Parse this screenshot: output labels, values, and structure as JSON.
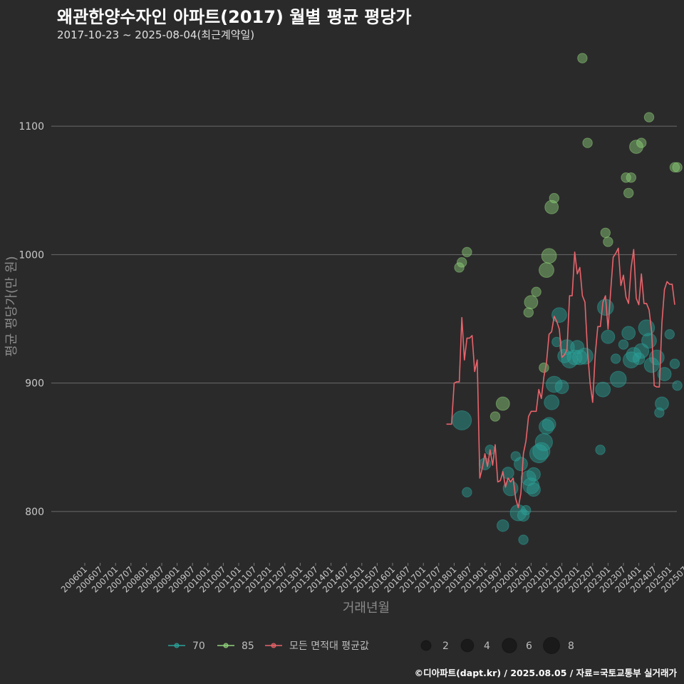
{
  "title": "왜관한양수자인 아파트(2017) 월별 평균 평당가",
  "subtitle": "2017-10-23 ~ 2025-08-04(최근계약일)",
  "caption": "©디아파트(dapt.kr) / 2025.08.05 / 자료=국토교통부 실거래가",
  "colors": {
    "s70": "#2aa198",
    "s85": "#8fd17a",
    "avg": "#e8646b",
    "grid": "#6a6a6a",
    "bg": "#2b2a2b"
  },
  "chart_data": {
    "type": "scatter",
    "title": "왜관한양수자인 아파트(2017) 월별 평균 평당가",
    "xlabel": "거래년월",
    "ylabel": "평균 평당가(만 원)",
    "ylim": [
      760,
      1165
    ],
    "yticks": [
      800,
      900,
      1000,
      1100
    ],
    "xtick_labels": [
      "200601",
      "200607",
      "200701",
      "200707",
      "200801",
      "200807",
      "200901",
      "200907",
      "201001",
      "201007",
      "201101",
      "201107",
      "201201",
      "201207",
      "201301",
      "201307",
      "201401",
      "201407",
      "201501",
      "201507",
      "201601",
      "201607",
      "201701",
      "201707",
      "201801",
      "201807",
      "201901",
      "201907",
      "202001",
      "202007",
      "202101",
      "202107",
      "202201",
      "202207",
      "202301",
      "202307",
      "202401",
      "202407",
      "202501",
      "202507"
    ],
    "legend": {
      "series": [
        {
          "name": "70",
          "color_key": "s70"
        },
        {
          "name": "85",
          "color_key": "s85"
        },
        {
          "name": "모든 면적대 평균값",
          "color_key": "avg"
        }
      ],
      "size_labels": [
        "2",
        "4",
        "6",
        "8"
      ]
    },
    "series": [
      {
        "name": "70",
        "points": [
          {
            "x": "2018-04",
            "y": 871,
            "n": 8
          },
          {
            "x": "2018-06",
            "y": 815,
            "n": 1
          },
          {
            "x": "2019-01",
            "y": 837,
            "n": 2
          },
          {
            "x": "2019-03",
            "y": 848,
            "n": 1
          },
          {
            "x": "2019-08",
            "y": 789,
            "n": 2
          },
          {
            "x": "2019-10",
            "y": 830,
            "n": 2
          },
          {
            "x": "2019-11",
            "y": 818,
            "n": 4
          },
          {
            "x": "2020-01",
            "y": 843,
            "n": 1
          },
          {
            "x": "2020-02",
            "y": 799,
            "n": 5
          },
          {
            "x": "2020-03",
            "y": 837,
            "n": 3
          },
          {
            "x": "2020-04",
            "y": 778,
            "n": 1
          },
          {
            "x": "2020-04",
            "y": 797,
            "n": 2
          },
          {
            "x": "2020-05",
            "y": 801,
            "n": 1
          },
          {
            "x": "2020-06",
            "y": 826,
            "n": 4
          },
          {
            "x": "2020-07",
            "y": 820,
            "n": 5
          },
          {
            "x": "2020-08",
            "y": 829,
            "n": 3
          },
          {
            "x": "2020-08",
            "y": 817,
            "n": 3
          },
          {
            "x": "2020-10",
            "y": 845,
            "n": 7
          },
          {
            "x": "2020-11",
            "y": 847,
            "n": 6
          },
          {
            "x": "2020-12",
            "y": 854,
            "n": 6
          },
          {
            "x": "2021-01",
            "y": 866,
            "n": 4
          },
          {
            "x": "2021-02",
            "y": 868,
            "n": 3
          },
          {
            "x": "2021-03",
            "y": 885,
            "n": 4
          },
          {
            "x": "2021-04",
            "y": 899,
            "n": 5
          },
          {
            "x": "2021-05",
            "y": 932,
            "n": 1
          },
          {
            "x": "2021-06",
            "y": 953,
            "n": 4
          },
          {
            "x": "2021-07",
            "y": 897,
            "n": 3
          },
          {
            "x": "2021-08",
            "y": 921,
            "n": 3
          },
          {
            "x": "2021-09",
            "y": 928,
            "n": 4
          },
          {
            "x": "2021-10",
            "y": 918,
            "n": 5
          },
          {
            "x": "2021-12",
            "y": 920,
            "n": 4
          },
          {
            "x": "2022-01",
            "y": 928,
            "n": 3
          },
          {
            "x": "2022-02",
            "y": 920,
            "n": 4
          },
          {
            "x": "2022-04",
            "y": 921,
            "n": 5
          },
          {
            "x": "2022-10",
            "y": 848,
            "n": 1
          },
          {
            "x": "2022-11",
            "y": 895,
            "n": 4
          },
          {
            "x": "2022-12",
            "y": 959,
            "n": 5
          },
          {
            "x": "2023-01",
            "y": 936,
            "n": 3
          },
          {
            "x": "2023-04",
            "y": 919,
            "n": 1
          },
          {
            "x": "2023-05",
            "y": 903,
            "n": 5
          },
          {
            "x": "2023-07",
            "y": 930,
            "n": 1
          },
          {
            "x": "2023-09",
            "y": 939,
            "n": 3
          },
          {
            "x": "2023-10",
            "y": 918,
            "n": 5
          },
          {
            "x": "2023-11",
            "y": 922,
            "n": 4
          },
          {
            "x": "2024-01",
            "y": 919,
            "n": 2
          },
          {
            "x": "2024-02",
            "y": 925,
            "n": 4
          },
          {
            "x": "2024-04",
            "y": 943,
            "n": 5
          },
          {
            "x": "2024-05",
            "y": 933,
            "n": 4
          },
          {
            "x": "2024-06",
            "y": 914,
            "n": 4
          },
          {
            "x": "2024-08",
            "y": 920,
            "n": 4
          },
          {
            "x": "2024-09",
            "y": 877,
            "n": 1
          },
          {
            "x": "2024-10",
            "y": 884,
            "n": 3
          },
          {
            "x": "2024-11",
            "y": 907,
            "n": 3
          },
          {
            "x": "2025-01",
            "y": 938,
            "n": 1
          },
          {
            "x": "2025-03",
            "y": 915,
            "n": 1
          },
          {
            "x": "2025-04",
            "y": 898,
            "n": 1
          }
        ]
      },
      {
        "name": "85",
        "points": [
          {
            "x": "2018-03",
            "y": 990,
            "n": 1
          },
          {
            "x": "2018-04",
            "y": 994,
            "n": 1
          },
          {
            "x": "2018-06",
            "y": 1002,
            "n": 1
          },
          {
            "x": "2019-05",
            "y": 874,
            "n": 1
          },
          {
            "x": "2019-08",
            "y": 884,
            "n": 3
          },
          {
            "x": "2020-06",
            "y": 955,
            "n": 1
          },
          {
            "x": "2020-07",
            "y": 963,
            "n": 3
          },
          {
            "x": "2020-09",
            "y": 971,
            "n": 1
          },
          {
            "x": "2020-12",
            "y": 912,
            "n": 1
          },
          {
            "x": "2021-01",
            "y": 988,
            "n": 4
          },
          {
            "x": "2021-02",
            "y": 999,
            "n": 4
          },
          {
            "x": "2021-03",
            "y": 1037,
            "n": 3
          },
          {
            "x": "2021-04",
            "y": 1044,
            "n": 1
          },
          {
            "x": "2022-03",
            "y": 1153,
            "n": 1
          },
          {
            "x": "2022-05",
            "y": 1087,
            "n": 1
          },
          {
            "x": "2022-12",
            "y": 1017,
            "n": 1
          },
          {
            "x": "2023-01",
            "y": 1010,
            "n": 1
          },
          {
            "x": "2023-08",
            "y": 1060,
            "n": 1
          },
          {
            "x": "2023-09",
            "y": 1048,
            "n": 1
          },
          {
            "x": "2023-10",
            "y": 1060,
            "n": 1
          },
          {
            "x": "2023-12",
            "y": 1084,
            "n": 3
          },
          {
            "x": "2024-02",
            "y": 1087,
            "n": 1
          },
          {
            "x": "2024-05",
            "y": 1107,
            "n": 1
          },
          {
            "x": "2025-03",
            "y": 1068,
            "n": 1
          },
          {
            "x": "2025-04",
            "y": 1068,
            "n": 1
          }
        ]
      }
    ],
    "average_line": {
      "name": "모든 면적대 평균값",
      "points": [
        {
          "x": "2017-10",
          "y": 868
        },
        {
          "x": "2017-11",
          "y": 868
        },
        {
          "x": "2017-12",
          "y": 868
        },
        {
          "x": "2018-01",
          "y": 900
        },
        {
          "x": "2018-02",
          "y": 901
        },
        {
          "x": "2018-03",
          "y": 901
        },
        {
          "x": "2018-04",
          "y": 951
        },
        {
          "x": "2018-05",
          "y": 918
        },
        {
          "x": "2018-06",
          "y": 935
        },
        {
          "x": "2018-07",
          "y": 935
        },
        {
          "x": "2018-08",
          "y": 937
        },
        {
          "x": "2018-09",
          "y": 909
        },
        {
          "x": "2018-10",
          "y": 918
        },
        {
          "x": "2018-11",
          "y": 826
        },
        {
          "x": "2018-12",
          "y": 834
        },
        {
          "x": "2019-01",
          "y": 845
        },
        {
          "x": "2019-02",
          "y": 835
        },
        {
          "x": "2019-03",
          "y": 848
        },
        {
          "x": "2019-04",
          "y": 836
        },
        {
          "x": "2019-05",
          "y": 852
        },
        {
          "x": "2019-06",
          "y": 823
        },
        {
          "x": "2019-07",
          "y": 824
        },
        {
          "x": "2019-08",
          "y": 831
        },
        {
          "x": "2019-09",
          "y": 819
        },
        {
          "x": "2019-10",
          "y": 826
        },
        {
          "x": "2019-11",
          "y": 823
        },
        {
          "x": "2019-12",
          "y": 826
        },
        {
          "x": "2020-01",
          "y": 810
        },
        {
          "x": "2020-02",
          "y": 803
        },
        {
          "x": "2020-03",
          "y": 814
        },
        {
          "x": "2020-04",
          "y": 845
        },
        {
          "x": "2020-05",
          "y": 855
        },
        {
          "x": "2020-06",
          "y": 874
        },
        {
          "x": "2020-07",
          "y": 878
        },
        {
          "x": "2020-08",
          "y": 878
        },
        {
          "x": "2020-09",
          "y": 878
        },
        {
          "x": "2020-10",
          "y": 895
        },
        {
          "x": "2020-11",
          "y": 888
        },
        {
          "x": "2020-12",
          "y": 905
        },
        {
          "x": "2021-01",
          "y": 916
        },
        {
          "x": "2021-02",
          "y": 938
        },
        {
          "x": "2021-03",
          "y": 940
        },
        {
          "x": "2021-04",
          "y": 952
        },
        {
          "x": "2021-05",
          "y": 948
        },
        {
          "x": "2021-06",
          "y": 942
        },
        {
          "x": "2021-07",
          "y": 920
        },
        {
          "x": "2021-08",
          "y": 922
        },
        {
          "x": "2021-09",
          "y": 926
        },
        {
          "x": "2021-10",
          "y": 968
        },
        {
          "x": "2021-11",
          "y": 968
        },
        {
          "x": "2021-12",
          "y": 1002
        },
        {
          "x": "2022-01",
          "y": 985
        },
        {
          "x": "2022-02",
          "y": 990
        },
        {
          "x": "2022-03",
          "y": 968
        },
        {
          "x": "2022-04",
          "y": 963
        },
        {
          "x": "2022-05",
          "y": 925
        },
        {
          "x": "2022-06",
          "y": 900
        },
        {
          "x": "2022-07",
          "y": 885
        },
        {
          "x": "2022-08",
          "y": 922
        },
        {
          "x": "2022-09",
          "y": 944
        },
        {
          "x": "2022-10",
          "y": 944
        },
        {
          "x": "2022-11",
          "y": 963
        },
        {
          "x": "2022-12",
          "y": 968
        },
        {
          "x": "2023-01",
          "y": 942
        },
        {
          "x": "2023-02",
          "y": 971
        },
        {
          "x": "2023-03",
          "y": 998
        },
        {
          "x": "2023-04",
          "y": 1001
        },
        {
          "x": "2023-05",
          "y": 1005
        },
        {
          "x": "2023-06",
          "y": 976
        },
        {
          "x": "2023-07",
          "y": 984
        },
        {
          "x": "2023-08",
          "y": 967
        },
        {
          "x": "2023-09",
          "y": 962
        },
        {
          "x": "2023-10",
          "y": 990
        },
        {
          "x": "2023-11",
          "y": 1004
        },
        {
          "x": "2023-12",
          "y": 966
        },
        {
          "x": "2024-01",
          "y": 961
        },
        {
          "x": "2024-02",
          "y": 985
        },
        {
          "x": "2024-03",
          "y": 962
        },
        {
          "x": "2024-04",
          "y": 962
        },
        {
          "x": "2024-05",
          "y": 957
        },
        {
          "x": "2024-06",
          "y": 940
        },
        {
          "x": "2024-07",
          "y": 898
        },
        {
          "x": "2024-08",
          "y": 897
        },
        {
          "x": "2024-09",
          "y": 897
        },
        {
          "x": "2024-10",
          "y": 947
        },
        {
          "x": "2024-11",
          "y": 973
        },
        {
          "x": "2024-12",
          "y": 979
        },
        {
          "x": "2025-01",
          "y": 977
        },
        {
          "x": "2025-02",
          "y": 977
        },
        {
          "x": "2025-03",
          "y": 961
        }
      ]
    }
  }
}
